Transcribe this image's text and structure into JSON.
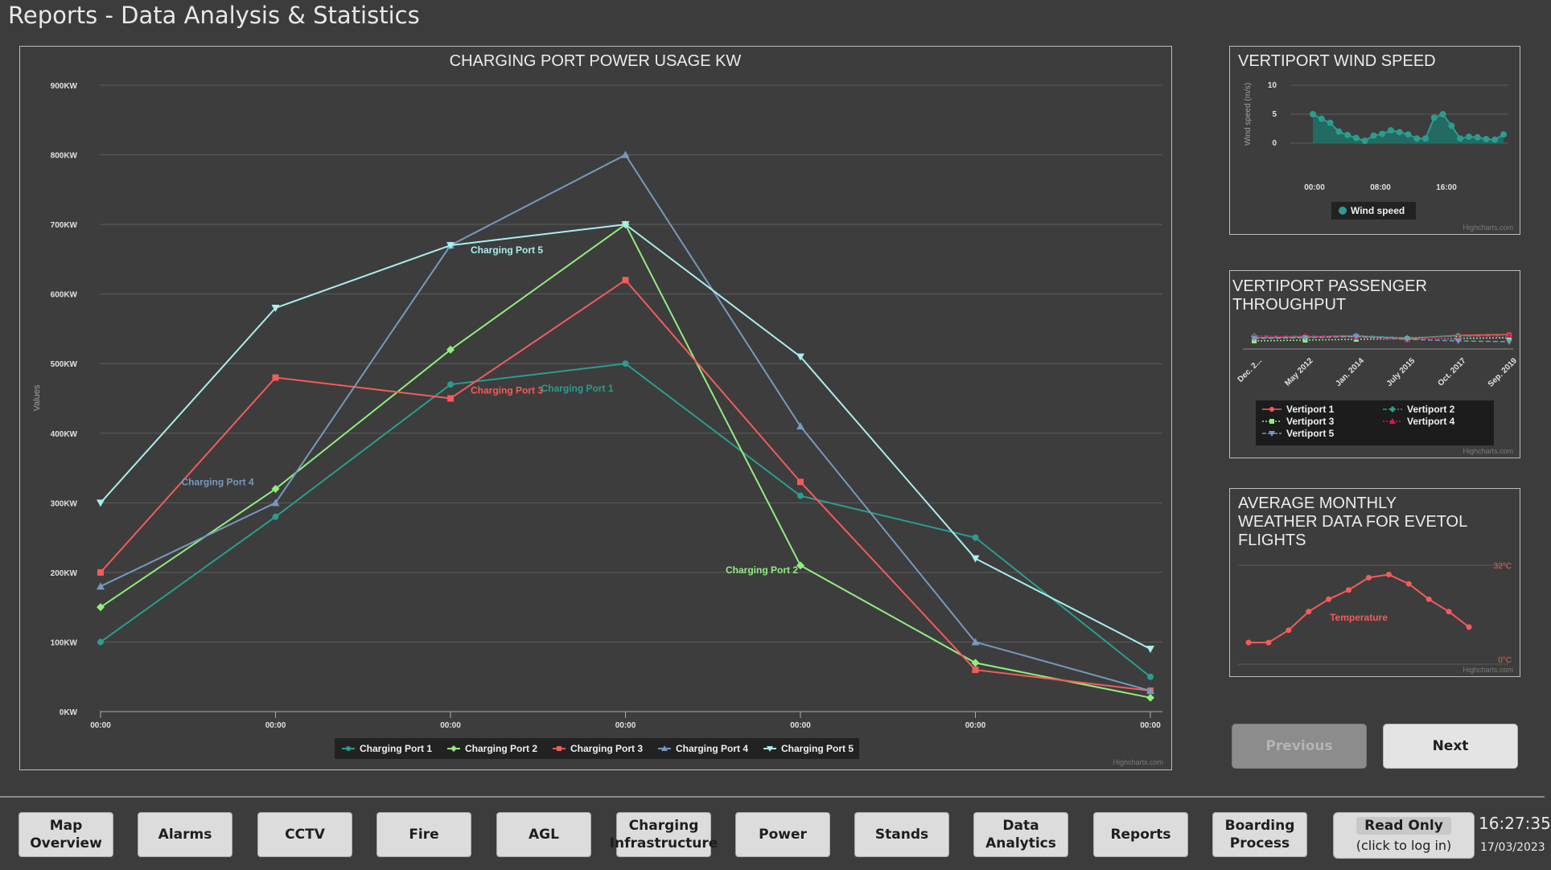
{
  "page": {
    "title": "Reports - Data Analysis & Statistics"
  },
  "main_chart": {
    "credit": "Highcharts.com"
  },
  "wind_chart": {
    "credit": "Highcharts.com"
  },
  "passenger_chart": {
    "credit": "Highcharts.com"
  },
  "weather_chart": {
    "credit": "Highcharts.com"
  },
  "chart_data": [
    {
      "type": "line",
      "title": "CHARGING PORT POWER USAGE KW",
      "ylabel": "Values",
      "xlabel": "",
      "ylim": [
        0,
        900
      ],
      "yticks": [
        "0KW",
        "100KW",
        "200KW",
        "300KW",
        "400KW",
        "500KW",
        "600KW",
        "700KW",
        "800KW",
        "900KW"
      ],
      "categories": [
        "00:00",
        "00:00",
        "00:00",
        "00:00",
        "00:00",
        "00:00",
        "00:00"
      ],
      "grid": true,
      "legend": "bottom",
      "series": [
        {
          "name": "Charging Port 1",
          "color": "#2a9d8f",
          "marker": "circle",
          "values": [
            100,
            280,
            470,
            500,
            310,
            250,
            50
          ]
        },
        {
          "name": "Charging Port 2",
          "color": "#90ee7e",
          "marker": "diamond",
          "values": [
            150,
            320,
            520,
            700,
            210,
            70,
            20
          ]
        },
        {
          "name": "Charging Port 3",
          "color": "#f45b5b",
          "marker": "square",
          "values": [
            200,
            480,
            450,
            620,
            330,
            60,
            30
          ]
        },
        {
          "name": "Charging Port 4",
          "color": "#7798bf",
          "marker": "triangle",
          "values": [
            180,
            300,
            670,
            800,
            410,
            100,
            30
          ]
        },
        {
          "name": "Charging Port 5",
          "color": "#aaeeee",
          "marker": "triangle-down",
          "values": [
            300,
            580,
            670,
            700,
            510,
            220,
            90
          ]
        }
      ],
      "annotations": [
        {
          "text": "Charging Port 5",
          "series": 4
        },
        {
          "text": "Charging Port 3",
          "series": 2
        },
        {
          "text": "Charging Port 1",
          "series": 0
        },
        {
          "text": "Charging Port 4",
          "series": 3
        },
        {
          "text": "Charging Port 2",
          "series": 1
        }
      ]
    },
    {
      "type": "area",
      "title": "VERTIPORT WIND SPEED",
      "ylabel": "Wind speed (m/s)",
      "ylim": [
        0,
        10
      ],
      "yticks": [
        "0",
        "5",
        "10"
      ],
      "xticks": [
        "00:00",
        "08:00",
        "16:00"
      ],
      "legend": "bottom",
      "series": [
        {
          "name": "Wind speed",
          "color": "#2a9d8f",
          "values": [
            5,
            4.2,
            3.5,
            2,
            1.4,
            0.9,
            0.4,
            1.3,
            1.6,
            2.2,
            1.9,
            1.5,
            0.8,
            0.8,
            4.4,
            5,
            3,
            0.8,
            1.1,
            1,
            0.7,
            0.6,
            1.5
          ]
        }
      ]
    },
    {
      "type": "line",
      "title": "VERTIPORT PASSENGER THROUGHPUT",
      "categories": [
        "Dec. 2...",
        "May 2012",
        "Jan. 2014",
        "July 2015",
        "Oct. 2017",
        "Sep. 2019"
      ],
      "legend": "bottom",
      "series": [
        {
          "name": "Vertiport 1",
          "color": "#f45b5b",
          "dash": "solid",
          "marker": "circle",
          "values": [
            38,
            40,
            42,
            36,
            44,
            46
          ]
        },
        {
          "name": "Vertiport 2",
          "color": "#2a9d8f",
          "dash": "dashdot",
          "marker": "diamond",
          "values": [
            42,
            41,
            43,
            38,
            42,
            43
          ]
        },
        {
          "name": "Vertiport 3",
          "color": "#90ee7e",
          "dash": "dot",
          "marker": "square",
          "values": [
            30,
            32,
            34,
            35,
            36,
            38
          ]
        },
        {
          "name": "Vertiport 4",
          "color": "#e0115f",
          "dash": "dot",
          "marker": "triangle",
          "values": [
            40,
            43,
            39,
            33,
            38,
            44
          ]
        },
        {
          "name": "Vertiport 5",
          "color": "#7798bf",
          "dash": "dash",
          "marker": "triangle-down",
          "values": [
            36,
            38,
            41,
            34,
            30,
            28
          ]
        }
      ]
    },
    {
      "type": "line",
      "title": "AVERAGE MONTHLY WEATHER DATA FOR EVETOL FLIGHTS",
      "ylim": [
        0,
        32
      ],
      "yticks": [
        "0°C",
        "32°C"
      ],
      "legend": "none",
      "series": [
        {
          "name": "Temperature",
          "color": "#f45b5b",
          "values": [
            7,
            7,
            11,
            17,
            21,
            24,
            28,
            29,
            26,
            21,
            17,
            12
          ]
        }
      ]
    }
  ],
  "side_nav": {
    "previous": "Previous",
    "next": "Next"
  },
  "bottom_nav": {
    "buttons": [
      "Map\nOverview",
      "Alarms",
      "CCTV",
      "Fire",
      "AGL",
      "Charging\nInfrastructure",
      "Power",
      "Stands",
      "Data\nAnalytics",
      "Reports",
      "Boarding\nProcess"
    ],
    "readonly_label": "Read Only",
    "readonly_sub": "(click to log in)",
    "time": "16:27:35",
    "date": "17/03/2023"
  }
}
